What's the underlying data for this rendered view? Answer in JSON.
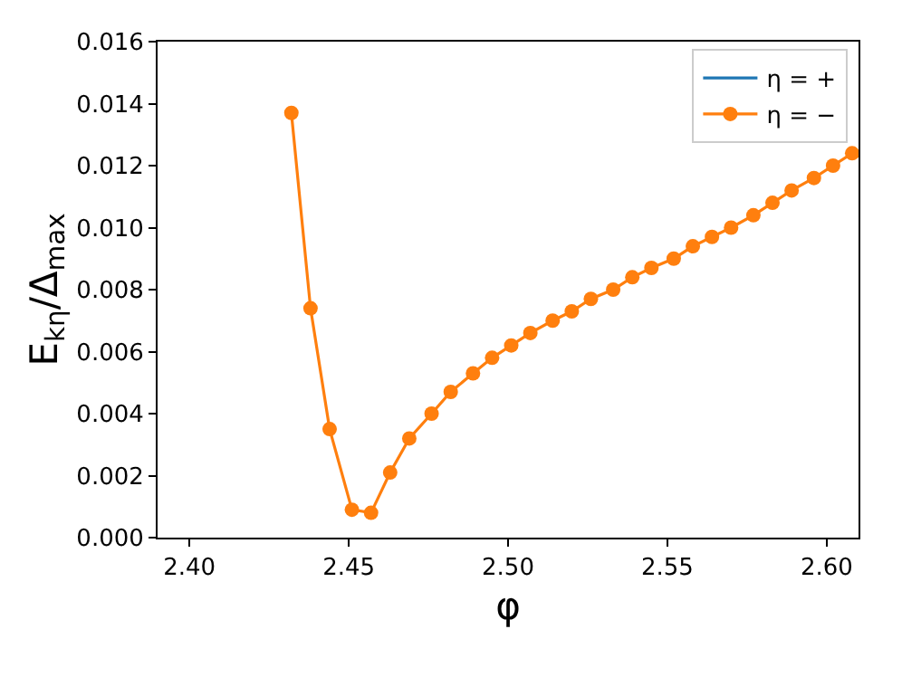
{
  "chart_data": {
    "type": "line",
    "xlabel": "φ",
    "ylabel": "E$_{kη}$/Δ$_{max}$",
    "x": [
      2.432,
      2.438,
      2.444,
      2.451,
      2.457,
      2.463,
      2.469,
      2.476,
      2.482,
      2.489,
      2.495,
      2.501,
      2.507,
      2.514,
      2.52,
      2.526,
      2.533,
      2.539,
      2.545,
      2.552,
      2.558,
      2.564,
      2.57,
      2.577,
      2.583,
      2.589,
      2.596,
      2.602,
      2.608
    ],
    "series": [
      {
        "name": "η = +",
        "color": "#1f77b4",
        "marker": "none",
        "values": [
          null,
          null,
          null,
          null,
          null,
          null,
          null,
          null,
          null,
          null,
          null,
          null,
          null,
          null,
          null,
          null,
          null,
          null,
          null,
          null,
          null,
          null,
          null,
          null,
          null,
          null,
          null,
          null,
          null
        ]
      },
      {
        "name": "η = −",
        "color": "#ff7f0e",
        "marker": "circle",
        "values": [
          0.0137,
          0.0074,
          0.0035,
          0.0009,
          0.0008,
          0.0021,
          0.0032,
          0.004,
          0.0047,
          0.0053,
          0.0058,
          0.0062,
          0.0066,
          0.007,
          0.0073,
          0.0077,
          0.008,
          0.0084,
          0.0087,
          0.009,
          0.0094,
          0.0097,
          0.01,
          0.0104,
          0.0108,
          0.0112,
          0.0116,
          0.012,
          0.0124
        ]
      }
    ],
    "xlim": [
      2.39,
      2.61
    ],
    "xticks": [
      {
        "value": 2.4,
        "label": "2.40"
      },
      2.45,
      {
        "value": 2.5,
        "label": "2.50"
      },
      2.55,
      {
        "value": 2.6,
        "label": "2.60"
      }
    ],
    "ylim": [
      0,
      0.016
    ],
    "yticks": [
      {
        "value": 0,
        "label": "0.000"
      },
      0.002,
      0.004,
      0.006,
      0.008,
      {
        "value": 0.01,
        "label": "0.010"
      },
      0.012,
      0.014,
      0.016
    ],
    "legend": "top right"
  }
}
